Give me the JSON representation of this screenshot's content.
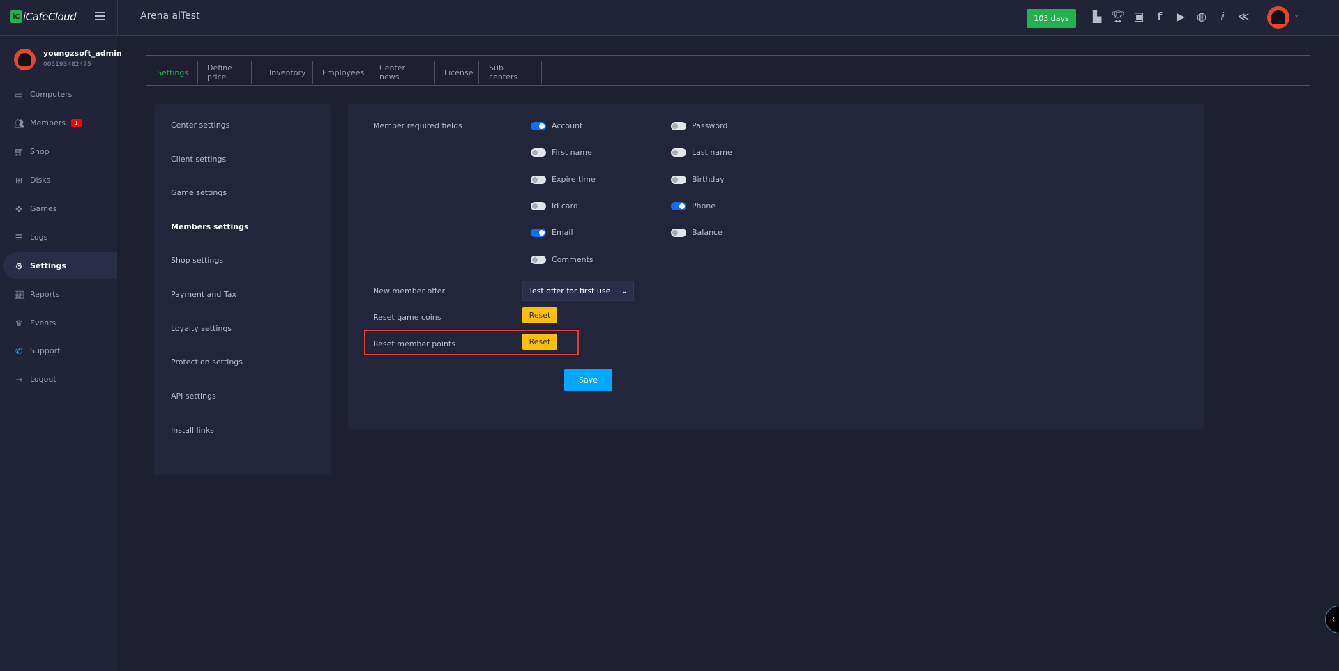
{
  "header": {
    "logo_text": "iCafeCloud",
    "title": "Arena aiTest",
    "days_badge": "103 days",
    "icons": [
      "leaderboard-icon",
      "trophy-icon",
      "discord-icon",
      "facebook-icon",
      "youtube-icon",
      "globe-icon",
      "icafecloud-icon",
      "brand-icon"
    ]
  },
  "user": {
    "name": "youngzsoft_admin",
    "id": "005193482475"
  },
  "sidebar": {
    "items": [
      {
        "label": "Computers",
        "icon": "monitor-icon"
      },
      {
        "label": "Members",
        "icon": "users-icon",
        "badge": "1"
      },
      {
        "label": "Shop",
        "icon": "cart-icon"
      },
      {
        "label": "Disks",
        "icon": "windows-icon"
      },
      {
        "label": "Games",
        "icon": "gamepad-icon"
      },
      {
        "label": "Logs",
        "icon": "list-icon"
      },
      {
        "label": "Settings",
        "icon": "gear-icon",
        "active": true
      },
      {
        "label": "Reports",
        "icon": "chart-icon"
      },
      {
        "label": "Events",
        "icon": "crown-icon"
      },
      {
        "label": "Support",
        "icon": "phone-icon"
      },
      {
        "label": "Logout",
        "icon": "logout-icon"
      }
    ]
  },
  "tabs": [
    "Settings",
    "Define price",
    "Inventory",
    "Employees",
    "Center news",
    "License",
    "Sub centers"
  ],
  "active_tab": "Settings",
  "settings_menu": [
    "Center settings",
    "Client settings",
    "Game settings",
    "Members settings",
    "Shop settings",
    "Payment and Tax",
    "Loyalty settings",
    "Protection settings",
    "API settings",
    "Install links"
  ],
  "active_settings": "Members settings",
  "form": {
    "required_label": "Member required fields",
    "fields": [
      {
        "label": "Account",
        "on": true
      },
      {
        "label": "Password",
        "on": false
      },
      {
        "label": "First name",
        "on": false
      },
      {
        "label": "Last name",
        "on": false
      },
      {
        "label": "Expire time",
        "on": false
      },
      {
        "label": "Birthday",
        "on": false
      },
      {
        "label": "Id card",
        "on": false
      },
      {
        "label": "Phone",
        "on": true
      },
      {
        "label": "Email",
        "on": true
      },
      {
        "label": "Balance",
        "on": false
      },
      {
        "label": "Comments",
        "on": false
      }
    ],
    "offer_label": "New member offer",
    "offer_value": "Test offer for first use",
    "reset_coins_label": "Reset game coins",
    "reset_points_label": "Reset member points",
    "reset_label": "Reset",
    "save_label": "Save"
  },
  "colors": {
    "accent_green": "#22b14c",
    "toggle_on": "#0d6efd",
    "reset": "#fbbf0b",
    "save": "#00a8ff",
    "highlight": "#e53935"
  }
}
